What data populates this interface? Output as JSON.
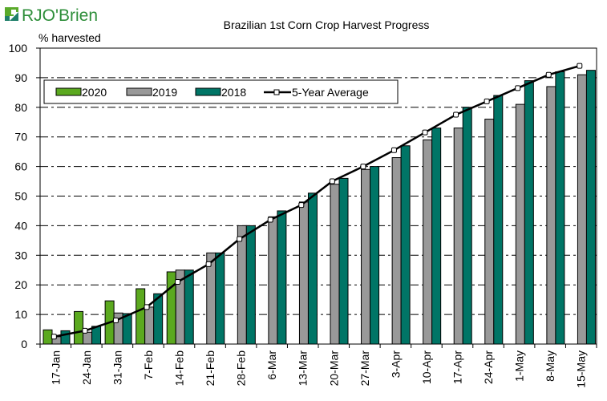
{
  "logo": {
    "brand": "RJO'Brien",
    "icon": "rjobrien-square-logo-icon",
    "colors": {
      "green": "#5AAA2A",
      "teal": "#1F7F6A",
      "text": "#2E8E3A"
    }
  },
  "colors": {
    "s2020": "#5BA91F",
    "s2019": "#999999",
    "s2018": "#007566",
    "avg": "#000000",
    "grid": "#000000"
  },
  "chart_data": {
    "type": "bar",
    "title": "Brazilian 1st Corn Crop Harvest Progress",
    "xlabel": "",
    "ylabel": "% harvested",
    "ylim": [
      0,
      100
    ],
    "yticks": [
      0,
      10,
      20,
      30,
      40,
      50,
      60,
      70,
      80,
      90,
      100
    ],
    "grid": "horizontal dash-dot",
    "legend_position": "top-left inside",
    "categories": [
      "17-Jan",
      "24-Jan",
      "31-Jan",
      "7-Feb",
      "14-Feb",
      "21-Feb",
      "28-Feb",
      "6-Mar",
      "13-Mar",
      "20-Mar",
      "27-Mar",
      "3-Apr",
      "10-Apr",
      "17-Apr",
      "24-Apr",
      "1-May",
      "8-May",
      "15-May"
    ],
    "series": [
      {
        "name": "2020",
        "type": "bar",
        "values": [
          4.8,
          11,
          14.6,
          18.7,
          24.4,
          null,
          null,
          null,
          null,
          null,
          null,
          null,
          null,
          null,
          null,
          null,
          null,
          null
        ]
      },
      {
        "name": "2019",
        "type": "bar",
        "values": [
          2.5,
          4,
          10.5,
          12.5,
          25,
          30.8,
          40,
          43,
          48,
          54,
          59,
          63,
          69,
          73,
          76,
          81,
          87,
          91
        ]
      },
      {
        "name": "2018",
        "type": "bar",
        "values": [
          4.5,
          6,
          10.3,
          17,
          25,
          30.8,
          40,
          45,
          51,
          56,
          60,
          67,
          73,
          80,
          84,
          89,
          92,
          92.5
        ]
      },
      {
        "name": "5-Year Average",
        "type": "line",
        "values": [
          2.5,
          4.5,
          8,
          12.5,
          21,
          27,
          35.5,
          42,
          47,
          55,
          60,
          65.5,
          71.5,
          77.5,
          82,
          86.5,
          91,
          94
        ]
      }
    ]
  }
}
